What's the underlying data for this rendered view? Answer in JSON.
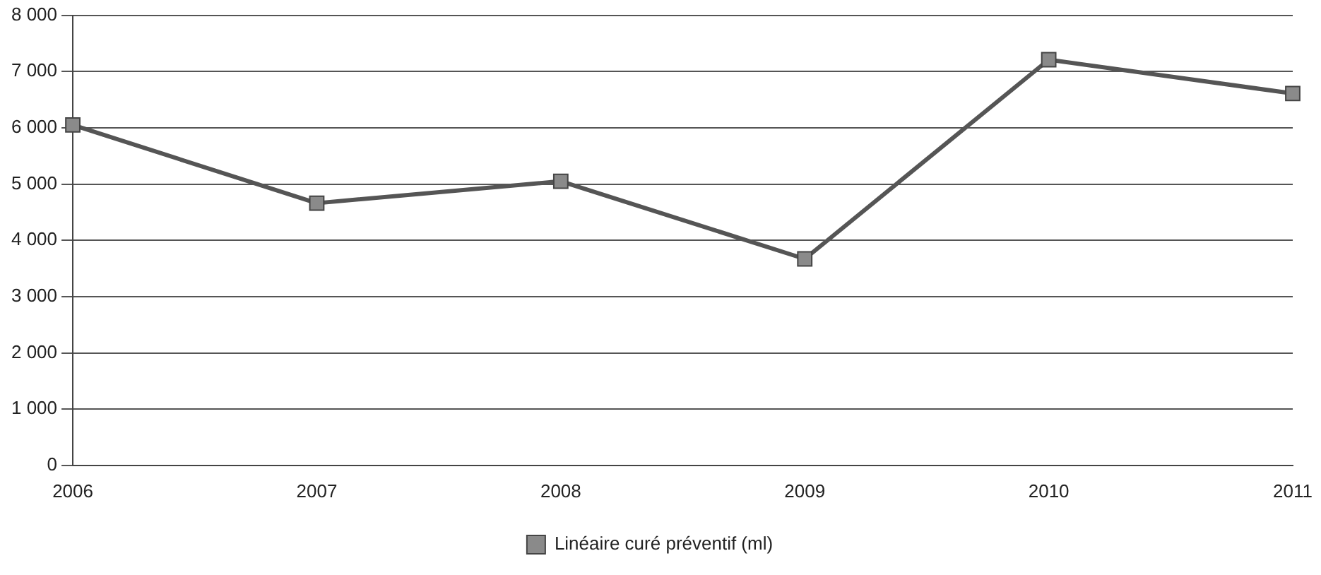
{
  "chart_data": {
    "type": "line",
    "categories": [
      "2006",
      "2007",
      "2008",
      "2009",
      "2010",
      "2011"
    ],
    "series": [
      {
        "name": "Linéaire curé préventif (ml)",
        "color": "#555555",
        "values": [
          6050,
          4660,
          5050,
          3670,
          7210,
          6610
        ]
      }
    ],
    "ylim": [
      0,
      8000
    ],
    "yticks": [
      {
        "value": 0,
        "label": "0"
      },
      {
        "value": 1000,
        "label": "1 000"
      },
      {
        "value": 2000,
        "label": "2 000"
      },
      {
        "value": 3000,
        "label": "3 000"
      },
      {
        "value": 4000,
        "label": "4 000"
      },
      {
        "value": 5000,
        "label": "5 000"
      },
      {
        "value": 6000,
        "label": "6 000"
      },
      {
        "value": 7000,
        "label": "7 000"
      },
      {
        "value": 8000,
        "label": "8 000"
      }
    ],
    "grid": "y",
    "legend": "bottom",
    "marker": "square",
    "line_style": "solid"
  }
}
